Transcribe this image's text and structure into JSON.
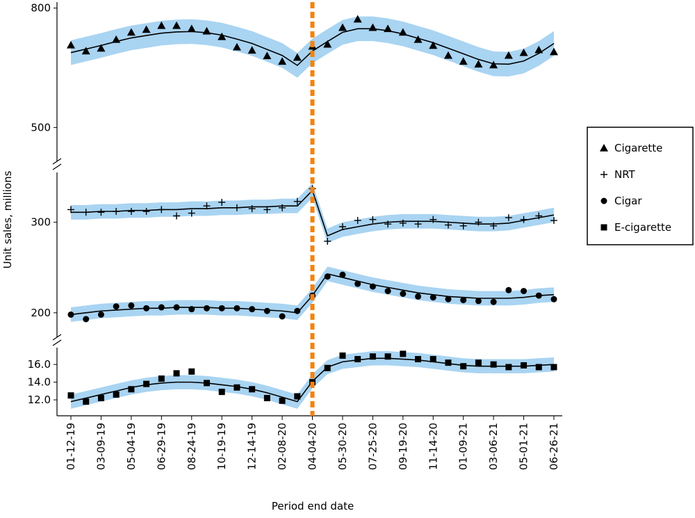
{
  "chart_data": {
    "type": "line",
    "x_label": "Period end date",
    "y_label": "Unit sales, millions",
    "categories": [
      "01-12-19",
      null,
      "03-09-19",
      null,
      "05-04-19",
      null,
      "06-29-19",
      null,
      "08-24-19",
      null,
      "10-19-19",
      null,
      "12-14-19",
      null,
      "02-08-20",
      null,
      "04-04-20",
      null,
      "05-30-20",
      null,
      "07-25-20",
      null,
      "09-19-20",
      null,
      "11-14-20",
      null,
      "01-09-21",
      null,
      "03-06-21",
      null,
      "05-01-21",
      null,
      "06-26-21"
    ],
    "reference_x": "04-04-20",
    "reference_color": "#f5820f",
    "band_color": "#a9d4f2",
    "line_color": "#000000",
    "legend": "right",
    "panels": [
      {
        "ylim": [
          415,
          815
        ],
        "yticks": [
          500,
          800
        ],
        "series": [
          {
            "name": "Cigarette",
            "marker": "triangle",
            "color": "#000000",
            "band_half_width": 31,
            "values": [
              707,
              692,
              699,
              721,
              739,
              746,
              756,
              756,
              748,
              742,
              728,
              702,
              694,
              680,
              666,
              676,
              704,
              709,
              751,
              772,
              751,
              748,
              739,
              721,
              706,
              681,
              666,
              659,
              657,
              681,
              688,
              695,
              690
            ],
            "fit": [
              688,
              697,
              706,
              716,
              725,
              731,
              737,
              740,
              741,
              738,
              732,
              722,
              711,
              696,
              681,
              656,
              692,
              716,
              739,
              748,
              748,
              743,
              735,
              724,
              713,
              699,
              685,
              671,
              660,
              659,
              667,
              686,
              711
            ]
          }
        ]
      },
      {
        "ylim": [
          173,
          355
        ],
        "yticks": [
          200,
          300
        ],
        "series": [
          {
            "name": "NRT",
            "marker": "plus",
            "color": "#000000",
            "band_half_width": 8,
            "values": [
              314,
              311,
              311,
              312,
              312,
              312,
              314,
              307,
              310,
              318,
              322,
              316,
              315,
              314,
              316,
              323,
              337,
              279,
              295,
              302,
              303,
              298,
              299,
              298,
              303,
              297,
              296,
              300,
              296,
              305,
              303,
              307,
              302
            ],
            "fit": [
              311,
              311,
              312,
              312,
              313,
              313,
              314,
              314,
              315,
              315,
              316,
              316,
              317,
              317,
              318,
              318,
              335,
              285,
              292,
              295,
              298,
              300,
              301,
              301,
              301,
              300,
              299,
              298,
              298,
              299,
              302,
              305,
              308
            ]
          },
          {
            "name": "Cigar",
            "marker": "circle",
            "color": "#000000",
            "band_half_width": 8,
            "values": [
              198,
              193,
              198,
              207,
              208,
              205,
              206,
              206,
              204,
              205,
              205,
              205,
              204,
              202,
              196,
              202,
              219,
              240,
              242,
              232,
              229,
              224,
              221,
              218,
              217,
              215,
              214,
              213,
              212,
              225,
              224,
              219,
              215
            ],
            "fit": [
              198,
              200,
              202,
              203,
              204,
              205,
              205,
              206,
              206,
              206,
              205,
              205,
              204,
              203,
              202,
              200,
              219,
              243,
              239,
              235,
              231,
              228,
              225,
              222,
              220,
              218,
              217,
              216,
              216,
              216,
              217,
              219,
              220
            ]
          }
        ]
      },
      {
        "ylim": [
          10.2,
          17.9
        ],
        "yticks": [
          {
            "value": 12,
            "label": "12.0"
          },
          {
            "value": 14,
            "label": "14.0"
          },
          {
            "value": 16,
            "label": "16.0"
          }
        ],
        "series": [
          {
            "name": "E-cigarette",
            "marker": "square",
            "color": "#000000",
            "band_half_width": 0.8,
            "values": [
              12.5,
              11.8,
              12.2,
              12.6,
              13.2,
              13.8,
              14.4,
              15.0,
              15.2,
              13.9,
              12.9,
              13.4,
              13.2,
              12.2,
              11.9,
              12.4,
              14.0,
              15.6,
              17.0,
              16.6,
              16.9,
              16.9,
              17.2,
              16.6,
              16.6,
              16.2,
              15.8,
              16.2,
              16.0,
              15.7,
              15.9,
              15.7,
              15.7
            ],
            "fit": [
              11.8,
              12.2,
              12.6,
              13.0,
              13.4,
              13.7,
              13.9,
              14.0,
              14.0,
              13.9,
              13.7,
              13.5,
              13.2,
              12.8,
              12.3,
              11.8,
              14.1,
              15.7,
              16.3,
              16.5,
              16.7,
              16.7,
              16.6,
              16.5,
              16.3,
              16.1,
              15.9,
              15.8,
              15.8,
              15.8,
              15.8,
              15.9,
              16.0
            ]
          }
        ]
      }
    ]
  }
}
